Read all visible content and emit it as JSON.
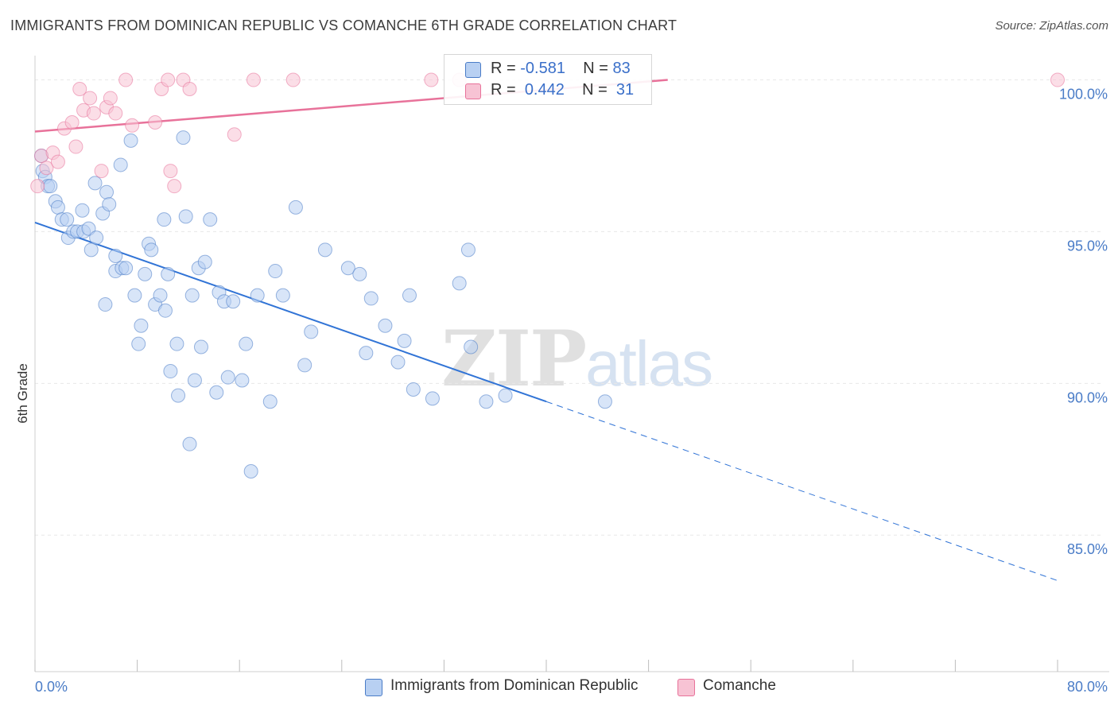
{
  "title": "IMMIGRANTS FROM DOMINICAN REPUBLIC VS COMANCHE 6TH GRADE CORRELATION CHART",
  "source": "Source: ZipAtlas.com",
  "watermark": {
    "zip": "ZIP",
    "atlas": "atlas"
  },
  "colors": {
    "blue": "#4a7cc7",
    "blue_fill": "#b8d0f2",
    "blue_line": "#3174d6",
    "pink": "#e8729a",
    "pink_fill": "#f7c3d4",
    "grid": "#e8e8e8"
  },
  "legend": {
    "r_label": "R =",
    "n_label": "N =",
    "rows": [
      {
        "r": "-0.581",
        "n": "83",
        "color": "#b8d0f2",
        "border": "#4a7cc7"
      },
      {
        "r": "0.442",
        "n": "31",
        "color": "#f7c3d4",
        "border": "#e8729a"
      }
    ]
  },
  "chart_data": {
    "type": "scatter",
    "title": "IMMIGRANTS FROM DOMINICAN REPUBLIC VS COMANCHE 6TH GRADE CORRELATION CHART",
    "xlabel": "",
    "ylabel": "6th Grade",
    "xlim": [
      0,
      80
    ],
    "ylim": [
      80.5,
      100.8
    ],
    "x_tick_labels": [
      "0.0%",
      "80.0%"
    ],
    "y_ticks": [
      85,
      90,
      95,
      100
    ],
    "y_tick_labels": [
      "85.0%",
      "90.0%",
      "95.0%",
      "100.0%"
    ],
    "grid": true,
    "legend_position": "bottom",
    "series": [
      {
        "name": "Immigrants from Dominican Republic",
        "color": "#4a7cc7",
        "trend": {
          "x0": 0,
          "y0": 95.3,
          "x1": 40,
          "y1": 89.4,
          "dash_to_x": 80,
          "dash_to_y": 83.5
        },
        "points": [
          [
            0.5,
            97.5
          ],
          [
            0.6,
            97.0
          ],
          [
            0.8,
            96.8
          ],
          [
            1.0,
            96.5
          ],
          [
            1.2,
            96.5
          ],
          [
            1.6,
            96.0
          ],
          [
            1.8,
            95.8
          ],
          [
            2.1,
            95.4
          ],
          [
            2.5,
            95.4
          ],
          [
            2.6,
            94.8
          ],
          [
            3.0,
            95.0
          ],
          [
            3.3,
            95.0
          ],
          [
            3.7,
            95.7
          ],
          [
            3.8,
            95.0
          ],
          [
            4.2,
            95.1
          ],
          [
            4.4,
            94.4
          ],
          [
            4.8,
            94.8
          ],
          [
            4.7,
            96.6
          ],
          [
            5.3,
            95.6
          ],
          [
            5.6,
            96.3
          ],
          [
            5.8,
            95.9
          ],
          [
            6.3,
            94.2
          ],
          [
            6.3,
            93.7
          ],
          [
            6.8,
            93.8
          ],
          [
            7.1,
            93.8
          ],
          [
            6.7,
            97.2
          ],
          [
            5.5,
            92.6
          ],
          [
            7.5,
            98.0
          ],
          [
            7.8,
            92.9
          ],
          [
            8.1,
            91.3
          ],
          [
            8.3,
            91.9
          ],
          [
            8.6,
            93.6
          ],
          [
            8.9,
            94.6
          ],
          [
            9.1,
            94.4
          ],
          [
            9.4,
            92.6
          ],
          [
            9.8,
            92.9
          ],
          [
            10.1,
            95.4
          ],
          [
            10.2,
            92.4
          ],
          [
            10.4,
            93.6
          ],
          [
            10.6,
            90.4
          ],
          [
            11.1,
            91.3
          ],
          [
            11.2,
            89.6
          ],
          [
            11.6,
            98.1
          ],
          [
            11.8,
            95.5
          ],
          [
            12.1,
            88.0
          ],
          [
            12.3,
            92.9
          ],
          [
            12.5,
            90.1
          ],
          [
            12.8,
            93.8
          ],
          [
            13.0,
            91.2
          ],
          [
            13.3,
            94.0
          ],
          [
            13.7,
            95.4
          ],
          [
            14.2,
            89.7
          ],
          [
            14.4,
            93.0
          ],
          [
            14.8,
            92.7
          ],
          [
            15.1,
            90.2
          ],
          [
            15.5,
            92.7
          ],
          [
            16.2,
            90.1
          ],
          [
            16.5,
            91.3
          ],
          [
            16.9,
            87.1
          ],
          [
            17.4,
            92.9
          ],
          [
            18.4,
            89.4
          ],
          [
            18.8,
            93.7
          ],
          [
            19.4,
            92.9
          ],
          [
            20.4,
            95.8
          ],
          [
            21.1,
            90.6
          ],
          [
            21.6,
            91.7
          ],
          [
            22.7,
            94.4
          ],
          [
            24.5,
            93.8
          ],
          [
            25.4,
            93.6
          ],
          [
            25.9,
            91.0
          ],
          [
            26.3,
            92.8
          ],
          [
            27.4,
            91.9
          ],
          [
            28.4,
            90.7
          ],
          [
            28.9,
            91.4
          ],
          [
            29.3,
            92.9
          ],
          [
            29.6,
            89.8
          ],
          [
            31.1,
            89.5
          ],
          [
            33.2,
            93.3
          ],
          [
            33.9,
            94.4
          ],
          [
            34.1,
            91.2
          ],
          [
            35.3,
            89.4
          ],
          [
            36.8,
            89.6
          ],
          [
            44.6,
            89.4
          ]
        ]
      },
      {
        "name": "Comanche",
        "color": "#e8729a",
        "trend": {
          "x0": 0,
          "y0": 98.3,
          "x1": 49.5,
          "y1": 100.0
        },
        "points": [
          [
            0.2,
            96.5
          ],
          [
            0.5,
            97.5
          ],
          [
            0.9,
            97.1
          ],
          [
            1.4,
            97.6
          ],
          [
            1.8,
            97.3
          ],
          [
            2.3,
            98.4
          ],
          [
            2.9,
            98.6
          ],
          [
            3.2,
            97.8
          ],
          [
            3.5,
            99.7
          ],
          [
            3.8,
            99.0
          ],
          [
            4.3,
            99.4
          ],
          [
            4.6,
            98.9
          ],
          [
            5.2,
            97.0
          ],
          [
            5.6,
            99.1
          ],
          [
            5.9,
            99.4
          ],
          [
            6.3,
            98.9
          ],
          [
            7.1,
            100.0
          ],
          [
            7.6,
            98.5
          ],
          [
            9.4,
            98.6
          ],
          [
            9.9,
            99.7
          ],
          [
            10.4,
            100.0
          ],
          [
            10.6,
            97.0
          ],
          [
            10.9,
            96.5
          ],
          [
            11.6,
            100.0
          ],
          [
            12.1,
            99.7
          ],
          [
            15.6,
            98.2
          ],
          [
            17.1,
            100.0
          ],
          [
            20.2,
            100.0
          ],
          [
            31.0,
            100.0
          ],
          [
            33.2,
            100.0
          ],
          [
            80.0,
            100.0
          ]
        ]
      }
    ]
  }
}
